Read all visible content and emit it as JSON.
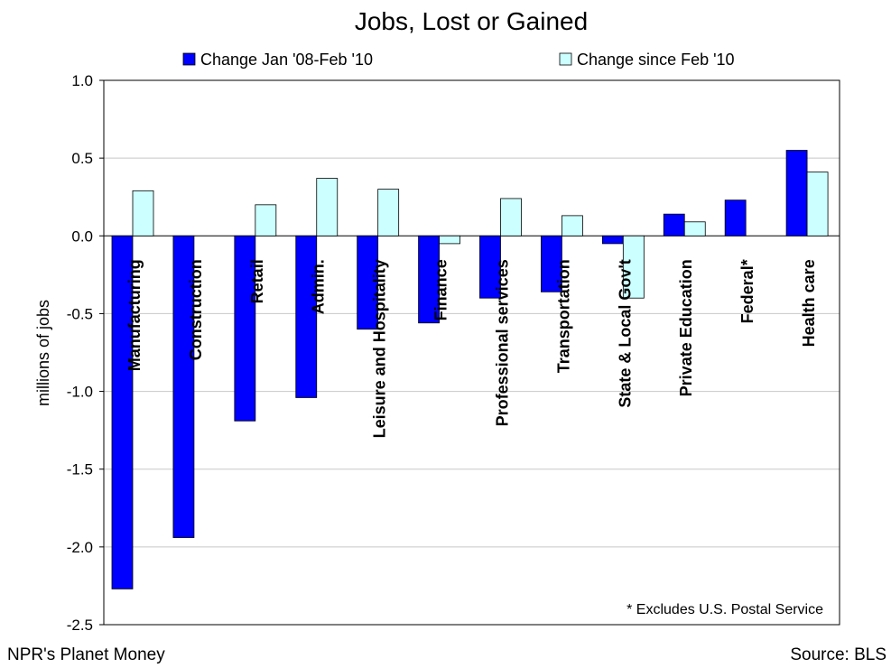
{
  "chart_data": {
    "type": "bar",
    "title": "Jobs, Lost or Gained",
    "ylabel": "millions of jobs",
    "xlabel": "",
    "ylim": [
      -2.5,
      1.0
    ],
    "yticks": [
      1.0,
      0.5,
      0.0,
      -0.5,
      -1.0,
      -1.5,
      -2.0,
      -2.5
    ],
    "grid": true,
    "legend_position": "top",
    "categories": [
      "Manufacturing",
      "Construction",
      "Retail",
      "Admin.",
      "Leisure and Hospitality",
      "Finance",
      "Professional services",
      "Transportation",
      "State & Local Gov't",
      "Private Education",
      "Federal*",
      "Health care"
    ],
    "series": [
      {
        "name": "Change Jan '08-Feb '10",
        "color": "#0000ff",
        "values": [
          -2.27,
          -1.94,
          -1.19,
          -1.04,
          -0.6,
          -0.56,
          -0.4,
          -0.36,
          -0.05,
          0.14,
          0.23,
          0.55
        ]
      },
      {
        "name": "Change since Feb '10",
        "color": "#ccffff",
        "values": [
          0.29,
          null,
          0.2,
          0.37,
          0.3,
          -0.05,
          0.24,
          0.13,
          -0.4,
          0.09,
          null,
          0.41
        ]
      }
    ],
    "annotation": "* Excludes U.S. Postal Service"
  },
  "footer": {
    "left": "NPR's Planet Money",
    "right": "Source: BLS"
  }
}
